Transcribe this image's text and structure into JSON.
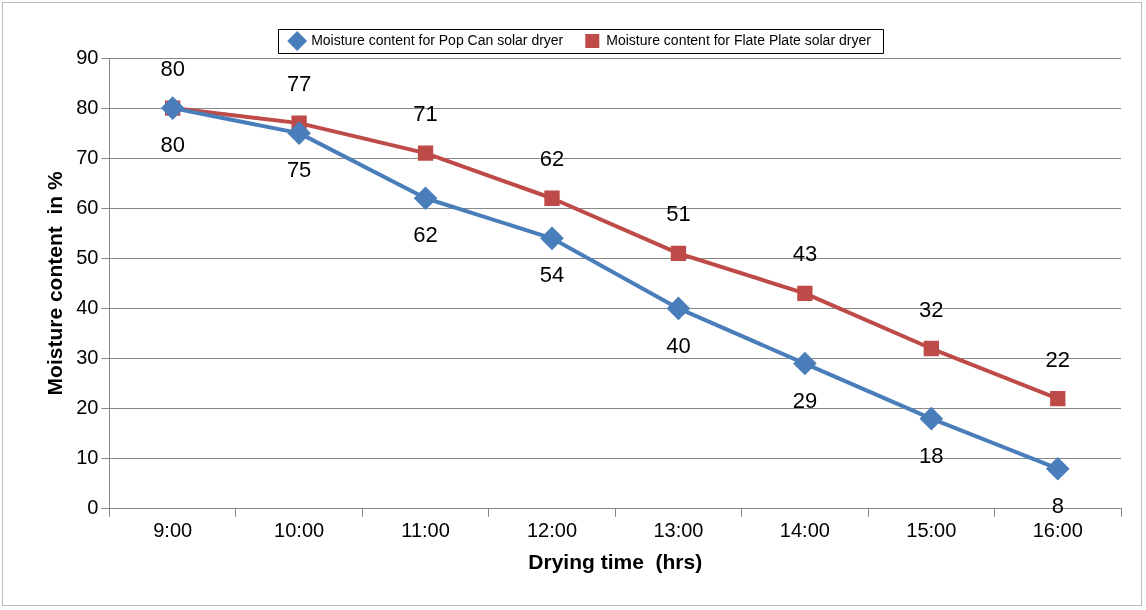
{
  "chart_data": {
    "type": "line",
    "xlabel": "Drying time  (hrs)",
    "ylabel": "Moisture content  in %",
    "categories": [
      "9:00",
      "10:00",
      "11:00",
      "12:00",
      "13:00",
      "14:00",
      "15:00",
      "16:00"
    ],
    "series": [
      {
        "name": "Moisture content for Pop Can solar dryer",
        "color": "#4a7ebb",
        "marker": "diamond",
        "values": [
          80,
          75,
          62,
          54,
          40,
          29,
          18,
          8
        ]
      },
      {
        "name": "Moisture content for Flate Plate solar dryer",
        "color": "#be4b48",
        "marker": "square",
        "values": [
          80,
          77,
          71,
          62,
          51,
          43,
          32,
          22
        ]
      }
    ],
    "ylim": [
      0,
      90
    ],
    "yticks": [
      0,
      10,
      20,
      30,
      40,
      50,
      60,
      70,
      80,
      90
    ],
    "grid": "y",
    "legend": "top",
    "data_labels": true,
    "line_style": "solid"
  }
}
